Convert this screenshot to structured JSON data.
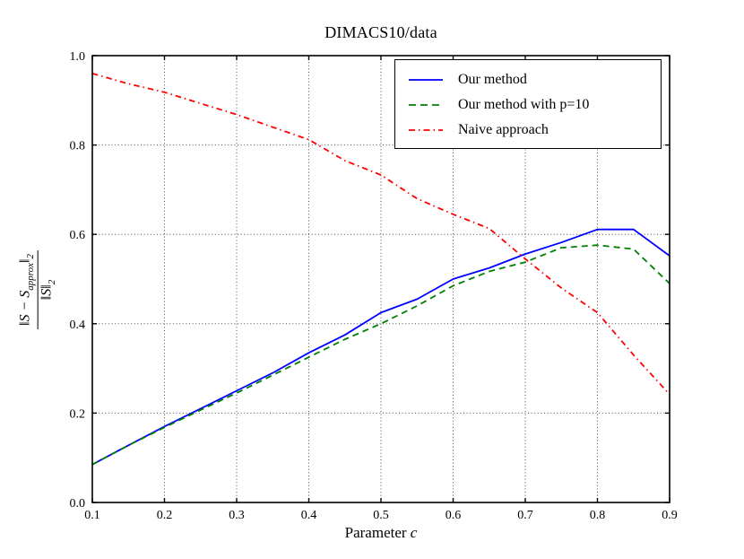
{
  "figure": {
    "title": "DIMACS10/data",
    "xlabel_text": "Parameter",
    "xlabel_var": "c",
    "ylabel": {
      "numerator_main": "‖S − S",
      "numerator_sub": "approx",
      "numerator_close": "‖",
      "numerator_close_sub": "2",
      "denominator_main": "‖S‖",
      "denominator_sub": "2"
    }
  },
  "chart_data": {
    "type": "line",
    "title": "DIMACS10/data",
    "xlabel": "Parameter c",
    "ylabel": "||S - S_approx||_2 / ||S||_2",
    "xlim": [
      0.1,
      0.9
    ],
    "ylim": [
      0.0,
      1.0
    ],
    "xticks": [
      0.1,
      0.2,
      0.3,
      0.4,
      0.5,
      0.6,
      0.7,
      0.8,
      0.9
    ],
    "yticks": [
      0.0,
      0.2,
      0.4,
      0.6,
      0.8,
      1.0
    ],
    "grid": true,
    "grid_style": "dotted",
    "legend_position": "upper right",
    "axis_color": "#000000",
    "grid_color": "#4d4d4d",
    "x": [
      0.1,
      0.15,
      0.2,
      0.25,
      0.3,
      0.35,
      0.4,
      0.45,
      0.5,
      0.55,
      0.6,
      0.65,
      0.7,
      0.75,
      0.8,
      0.85,
      0.9
    ],
    "series": [
      {
        "name": "Our method",
        "color": "#0000ff",
        "style": "solid",
        "values": [
          0.085,
          0.128,
          0.17,
          0.21,
          0.25,
          0.29,
          0.335,
          0.375,
          0.425,
          0.455,
          0.5,
          0.525,
          0.556,
          0.582,
          0.611,
          0.611,
          0.552
        ]
      },
      {
        "name": "Our method with p=10",
        "color": "#008000",
        "style": "dashed",
        "values": [
          0.085,
          0.128,
          0.168,
          0.207,
          0.245,
          0.285,
          0.325,
          0.365,
          0.4,
          0.44,
          0.485,
          0.517,
          0.538,
          0.57,
          0.576,
          0.567,
          0.49
        ]
      },
      {
        "name": "Naive approach",
        "color": "#ff0000",
        "style": "dashdot",
        "values": [
          0.96,
          0.937,
          0.918,
          0.893,
          0.868,
          0.84,
          0.812,
          0.765,
          0.733,
          0.68,
          0.645,
          0.613,
          0.545,
          0.48,
          0.425,
          0.33,
          0.242
        ]
      }
    ]
  }
}
